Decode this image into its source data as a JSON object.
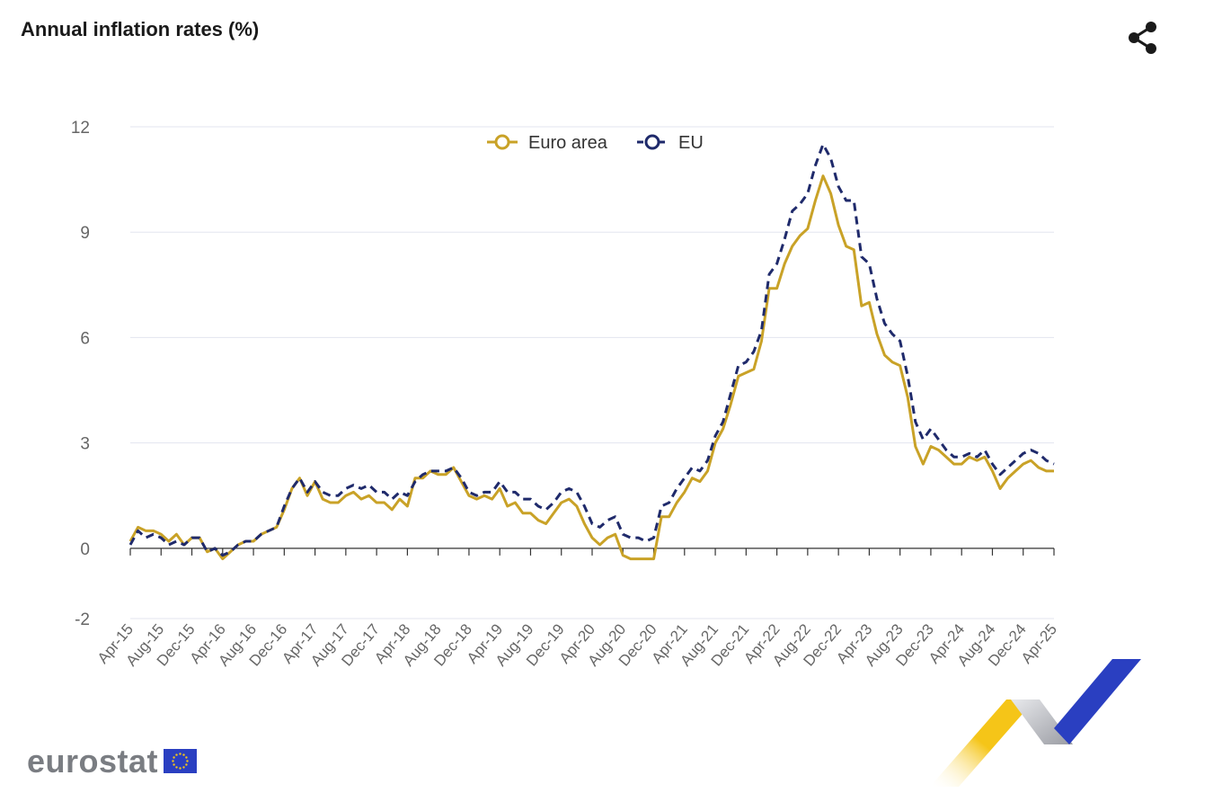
{
  "header": {
    "title": "Annual inflation rates (%)",
    "share_icon": "share-icon"
  },
  "brand": {
    "name": "eurostat",
    "flag_icon": "eu-flag-icon"
  },
  "colors": {
    "euro_area": "#c9a227",
    "eu": "#1f2a6b",
    "grid": "#e3e5ef",
    "axis_text": "#666666",
    "deco_yellow": "#f5c518",
    "deco_blue": "#2a3fc1",
    "deco_grey": "#b9bcc4"
  },
  "chart_data": {
    "type": "line",
    "title": "Annual inflation rates (%)",
    "ylim": [
      -2,
      12
    ],
    "yticks": [
      -2,
      0,
      3,
      6,
      9,
      12
    ],
    "grid": true,
    "legend_position": "top-center",
    "x_tick_labels": [
      "Apr-15",
      "Aug-15",
      "Dec-15",
      "Apr-16",
      "Aug-16",
      "Dec-16",
      "Apr-17",
      "Aug-17",
      "Dec-17",
      "Apr-18",
      "Aug-18",
      "Dec-18",
      "Apr-19",
      "Aug-19",
      "Dec-19",
      "Apr-20",
      "Aug-20",
      "Dec-20",
      "Apr-21",
      "Aug-21",
      "Dec-21",
      "Apr-22",
      "Aug-22",
      "Dec-22",
      "Apr-23",
      "Aug-23",
      "Dec-23",
      "Apr-24",
      "Aug-24",
      "Dec-24",
      "Apr-25"
    ],
    "x": [
      "Apr-15",
      "May-15",
      "Jun-15",
      "Jul-15",
      "Aug-15",
      "Sep-15",
      "Oct-15",
      "Nov-15",
      "Dec-15",
      "Jan-16",
      "Feb-16",
      "Mar-16",
      "Apr-16",
      "May-16",
      "Jun-16",
      "Jul-16",
      "Aug-16",
      "Sep-16",
      "Oct-16",
      "Nov-16",
      "Dec-16",
      "Jan-17",
      "Feb-17",
      "Mar-17",
      "Apr-17",
      "May-17",
      "Jun-17",
      "Jul-17",
      "Aug-17",
      "Sep-17",
      "Oct-17",
      "Nov-17",
      "Dec-17",
      "Jan-18",
      "Feb-18",
      "Mar-18",
      "Apr-18",
      "May-18",
      "Jun-18",
      "Jul-18",
      "Aug-18",
      "Sep-18",
      "Oct-18",
      "Nov-18",
      "Dec-18",
      "Jan-19",
      "Feb-19",
      "Mar-19",
      "Apr-19",
      "May-19",
      "Jun-19",
      "Jul-19",
      "Aug-19",
      "Sep-19",
      "Oct-19",
      "Nov-19",
      "Dec-19",
      "Jan-20",
      "Feb-20",
      "Mar-20",
      "Apr-20",
      "May-20",
      "Jun-20",
      "Jul-20",
      "Aug-20",
      "Sep-20",
      "Oct-20",
      "Nov-20",
      "Dec-20",
      "Jan-21",
      "Feb-21",
      "Mar-21",
      "Apr-21",
      "May-21",
      "Jun-21",
      "Jul-21",
      "Aug-21",
      "Sep-21",
      "Oct-21",
      "Nov-21",
      "Dec-21",
      "Jan-22",
      "Feb-22",
      "Mar-22",
      "Apr-22",
      "May-22",
      "Jun-22",
      "Jul-22",
      "Aug-22",
      "Sep-22",
      "Oct-22",
      "Nov-22",
      "Dec-22",
      "Jan-23",
      "Feb-23",
      "Mar-23",
      "Apr-23",
      "May-23",
      "Jun-23",
      "Jul-23",
      "Aug-23",
      "Sep-23",
      "Oct-23",
      "Nov-23",
      "Dec-23",
      "Jan-24",
      "Feb-24",
      "Mar-24",
      "Apr-24",
      "May-24",
      "Jun-24",
      "Jul-24",
      "Aug-24",
      "Sep-24",
      "Oct-24",
      "Nov-24",
      "Dec-24",
      "Jan-25",
      "Feb-25",
      "Mar-25",
      "Apr-25"
    ],
    "series": [
      {
        "name": "Euro area",
        "style": "solid",
        "values": [
          0.2,
          0.6,
          0.5,
          0.5,
          0.4,
          0.2,
          0.4,
          0.1,
          0.3,
          0.3,
          -0.1,
          0.0,
          -0.3,
          -0.1,
          0.1,
          0.2,
          0.2,
          0.4,
          0.5,
          0.6,
          1.1,
          1.7,
          2.0,
          1.5,
          1.9,
          1.4,
          1.3,
          1.3,
          1.5,
          1.6,
          1.4,
          1.5,
          1.3,
          1.3,
          1.1,
          1.4,
          1.2,
          2.0,
          2.0,
          2.2,
          2.1,
          2.1,
          2.3,
          1.9,
          1.5,
          1.4,
          1.5,
          1.4,
          1.7,
          1.2,
          1.3,
          1.0,
          1.0,
          0.8,
          0.7,
          1.0,
          1.3,
          1.4,
          1.2,
          0.7,
          0.3,
          0.1,
          0.3,
          0.4,
          -0.2,
          -0.3,
          -0.3,
          -0.3,
          -0.3,
          0.9,
          0.9,
          1.3,
          1.6,
          2.0,
          1.9,
          2.2,
          3.0,
          3.4,
          4.1,
          4.9,
          5.0,
          5.1,
          5.9,
          7.4,
          7.4,
          8.1,
          8.6,
          8.9,
          9.1,
          9.9,
          10.6,
          10.1,
          9.2,
          8.6,
          8.5,
          6.9,
          7.0,
          6.1,
          5.5,
          5.3,
          5.2,
          4.3,
          2.9,
          2.4,
          2.9,
          2.8,
          2.6,
          2.4,
          2.4,
          2.6,
          2.5,
          2.6,
          2.2,
          1.7,
          2.0,
          2.2,
          2.4,
          2.5,
          2.3,
          2.2,
          2.2
        ]
      },
      {
        "name": "EU",
        "style": "dashed",
        "values": [
          0.1,
          0.5,
          0.3,
          0.4,
          0.3,
          0.1,
          0.2,
          0.1,
          0.3,
          0.3,
          -0.1,
          0.0,
          -0.2,
          -0.1,
          0.1,
          0.2,
          0.2,
          0.4,
          0.5,
          0.6,
          1.2,
          1.7,
          2.0,
          1.6,
          1.9,
          1.6,
          1.5,
          1.5,
          1.7,
          1.8,
          1.7,
          1.8,
          1.6,
          1.6,
          1.4,
          1.6,
          1.5,
          1.9,
          2.1,
          2.2,
          2.2,
          2.2,
          2.3,
          2.0,
          1.6,
          1.5,
          1.6,
          1.6,
          1.9,
          1.6,
          1.6,
          1.4,
          1.4,
          1.2,
          1.1,
          1.3,
          1.6,
          1.7,
          1.6,
          1.2,
          0.7,
          0.6,
          0.8,
          0.9,
          0.4,
          0.3,
          0.3,
          0.2,
          0.3,
          1.2,
          1.3,
          1.7,
          2.0,
          2.3,
          2.2,
          2.5,
          3.2,
          3.6,
          4.4,
          5.2,
          5.3,
          5.6,
          6.2,
          7.8,
          8.1,
          8.8,
          9.6,
          9.8,
          10.1,
          10.9,
          11.5,
          11.1,
          10.3,
          9.9,
          9.9,
          8.3,
          8.1,
          7.1,
          6.4,
          6.1,
          5.9,
          4.9,
          3.6,
          3.1,
          3.4,
          3.1,
          2.8,
          2.6,
          2.6,
          2.7,
          2.6,
          2.8,
          2.4,
          2.1,
          2.3,
          2.5,
          2.7,
          2.8,
          2.7,
          2.5,
          2.4
        ]
      }
    ]
  }
}
